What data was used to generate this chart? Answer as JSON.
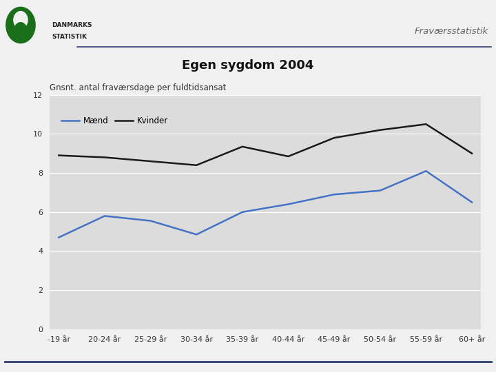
{
  "title": "Egen sygdom 2004",
  "header_text": "Fraværsstatistik",
  "ylabel": "Gnsnt. antal fraværsdage per fuldtidsansat",
  "categories": [
    "-19 år",
    "20-24 år",
    "25-29 år",
    "30-34 år",
    "35-39 år",
    "40-44 år",
    "45-49 år",
    "50-54 år",
    "55-59 år",
    "60+ år"
  ],
  "maend": [
    4.7,
    5.8,
    5.55,
    4.85,
    6.0,
    6.4,
    6.9,
    7.1,
    8.1,
    6.5
  ],
  "kvinder": [
    8.9,
    8.8,
    8.6,
    8.4,
    9.35,
    8.85,
    9.8,
    10.2,
    10.5,
    9.0
  ],
  "maend_color": "#4472C4",
  "kvinder_color": "#1A1A1A",
  "ylim": [
    0,
    12
  ],
  "yticks": [
    0,
    2,
    4,
    6,
    8,
    10,
    12
  ],
  "plot_bg": "#DCDCDC",
  "fig_bg": "#F0F0F0",
  "line_width": 1.8,
  "title_fontsize": 13,
  "label_fontsize": 8.5,
  "tick_fontsize": 8,
  "legend_fontsize": 8.5,
  "bar_color": "#2E3B6E"
}
